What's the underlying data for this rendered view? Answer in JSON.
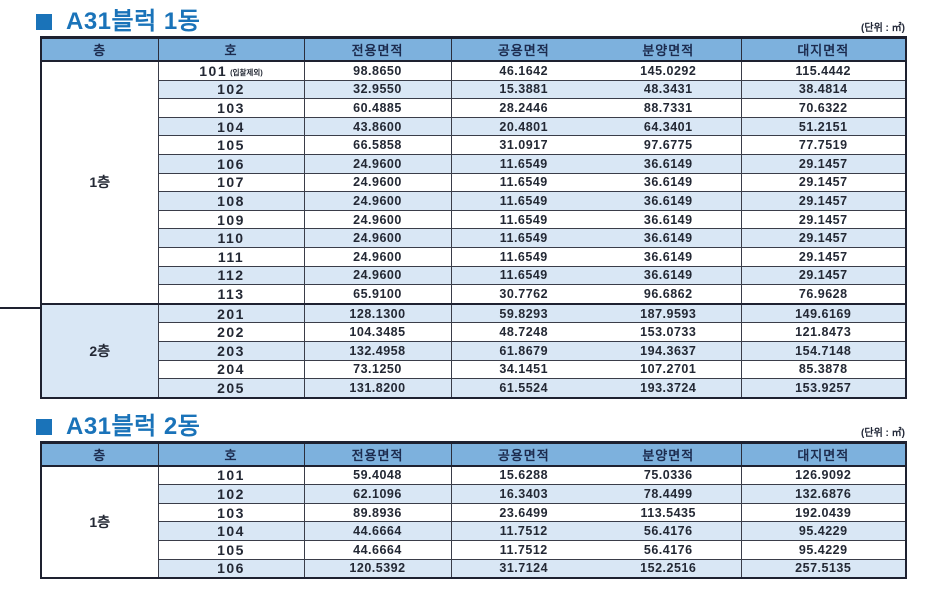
{
  "unit_label": "(단위 : ㎡)",
  "columns": [
    "층",
    "호",
    "전용면적",
    "공용면적",
    "분양면적",
    "대지면적"
  ],
  "colors": {
    "title_blue": "#1a73b9",
    "header_bg": "#7db1dd",
    "alt_row_bg": "#d9e7f5",
    "border_dark": "#1e2130",
    "grid_line": "#3a3d49",
    "header_text": "#1c2b4e",
    "body_text": "#232834"
  },
  "tables": [
    {
      "title": "A31블럭 1동",
      "groups": [
        {
          "floor": "1층",
          "rows": [
            {
              "unit": "101",
              "note": "(입찰제외)",
              "values": [
                "98.8650",
                "46.1642",
                "145.0292",
                "115.4442"
              ]
            },
            {
              "unit": "102",
              "values": [
                "32.9550",
                "15.3881",
                "48.3431",
                "38.4814"
              ]
            },
            {
              "unit": "103",
              "values": [
                "60.4885",
                "28.2446",
                "88.7331",
                "70.6322"
              ]
            },
            {
              "unit": "104",
              "values": [
                "43.8600",
                "20.4801",
                "64.3401",
                "51.2151"
              ]
            },
            {
              "unit": "105",
              "values": [
                "66.5858",
                "31.0917",
                "97.6775",
                "77.7519"
              ]
            },
            {
              "unit": "106",
              "values": [
                "24.9600",
                "11.6549",
                "36.6149",
                "29.1457"
              ]
            },
            {
              "unit": "107",
              "values": [
                "24.9600",
                "11.6549",
                "36.6149",
                "29.1457"
              ]
            },
            {
              "unit": "108",
              "values": [
                "24.9600",
                "11.6549",
                "36.6149",
                "29.1457"
              ]
            },
            {
              "unit": "109",
              "values": [
                "24.9600",
                "11.6549",
                "36.6149",
                "29.1457"
              ]
            },
            {
              "unit": "110",
              "values": [
                "24.9600",
                "11.6549",
                "36.6149",
                "29.1457"
              ]
            },
            {
              "unit": "111",
              "values": [
                "24.9600",
                "11.6549",
                "36.6149",
                "29.1457"
              ]
            },
            {
              "unit": "112",
              "values": [
                "24.9600",
                "11.6549",
                "36.6149",
                "29.1457"
              ]
            },
            {
              "unit": "113",
              "values": [
                "65.9100",
                "30.7762",
                "96.6862",
                "76.9628"
              ]
            }
          ]
        },
        {
          "floor": "2층",
          "rows": [
            {
              "unit": "201",
              "values": [
                "128.1300",
                "59.8293",
                "187.9593",
                "149.6169"
              ]
            },
            {
              "unit": "202",
              "values": [
                "104.3485",
                "48.7248",
                "153.0733",
                "121.8473"
              ]
            },
            {
              "unit": "203",
              "values": [
                "132.4958",
                "61.8679",
                "194.3637",
                "154.7148"
              ]
            },
            {
              "unit": "204",
              "values": [
                "73.1250",
                "34.1451",
                "107.2701",
                "85.3878"
              ]
            },
            {
              "unit": "205",
              "values": [
                "131.8200",
                "61.5524",
                "193.3724",
                "153.9257"
              ]
            }
          ]
        }
      ]
    },
    {
      "title": "A31블럭 2동",
      "groups": [
        {
          "floor": "1층",
          "rows": [
            {
              "unit": "101",
              "values": [
                "59.4048",
                "15.6288",
                "75.0336",
                "126.9092"
              ]
            },
            {
              "unit": "102",
              "values": [
                "62.1096",
                "16.3403",
                "78.4499",
                "132.6876"
              ]
            },
            {
              "unit": "103",
              "values": [
                "89.8936",
                "23.6499",
                "113.5435",
                "192.0439"
              ]
            },
            {
              "unit": "104",
              "values": [
                "44.6664",
                "11.7512",
                "56.4176",
                "95.4229"
              ]
            },
            {
              "unit": "105",
              "values": [
                "44.6664",
                "11.7512",
                "56.4176",
                "95.4229"
              ]
            },
            {
              "unit": "106",
              "values": [
                "120.5392",
                "31.7124",
                "152.2516",
                "257.5135"
              ]
            }
          ]
        }
      ]
    }
  ]
}
